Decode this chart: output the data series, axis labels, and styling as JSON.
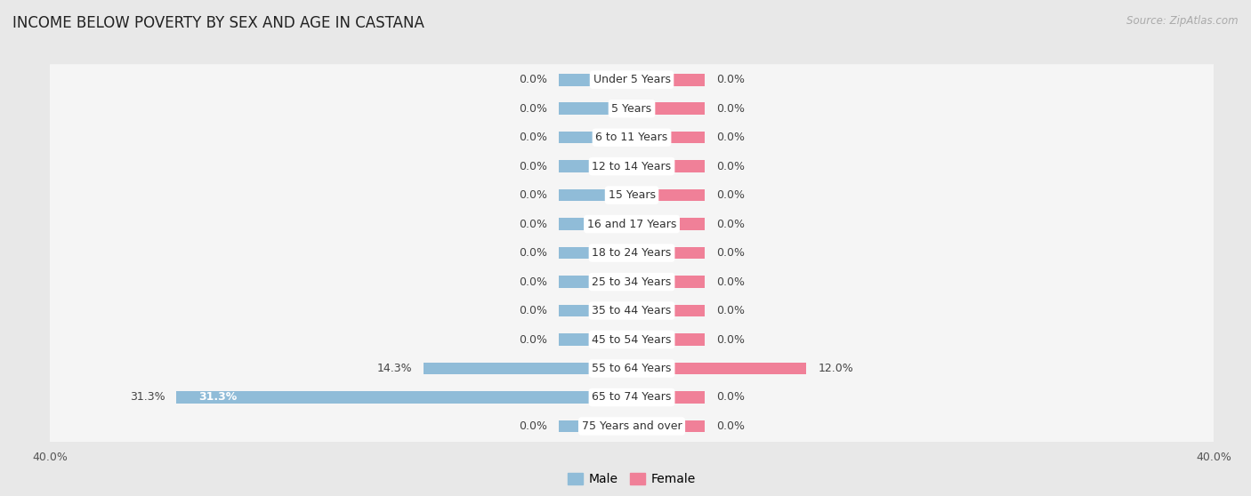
{
  "title": "INCOME BELOW POVERTY BY SEX AND AGE IN CASTANA",
  "source": "Source: ZipAtlas.com",
  "categories": [
    "Under 5 Years",
    "5 Years",
    "6 to 11 Years",
    "12 to 14 Years",
    "15 Years",
    "16 and 17 Years",
    "18 to 24 Years",
    "25 to 34 Years",
    "35 to 44 Years",
    "45 to 54 Years",
    "55 to 64 Years",
    "65 to 74 Years",
    "75 Years and over"
  ],
  "male_values": [
    0.0,
    0.0,
    0.0,
    0.0,
    0.0,
    0.0,
    0.0,
    0.0,
    0.0,
    0.0,
    14.3,
    31.3,
    0.0
  ],
  "female_values": [
    0.0,
    0.0,
    0.0,
    0.0,
    0.0,
    0.0,
    0.0,
    0.0,
    0.0,
    0.0,
    12.0,
    0.0,
    0.0
  ],
  "male_color": "#90bcd8",
  "female_color": "#f08098",
  "male_label": "Male",
  "female_label": "Female",
  "axis_max": 40.0,
  "background_color": "#e8e8e8",
  "row_bg_color": "#f5f5f5",
  "title_fontsize": 12,
  "source_fontsize": 8.5,
  "label_fontsize": 9,
  "category_fontsize": 9,
  "stub_size": 5.0
}
